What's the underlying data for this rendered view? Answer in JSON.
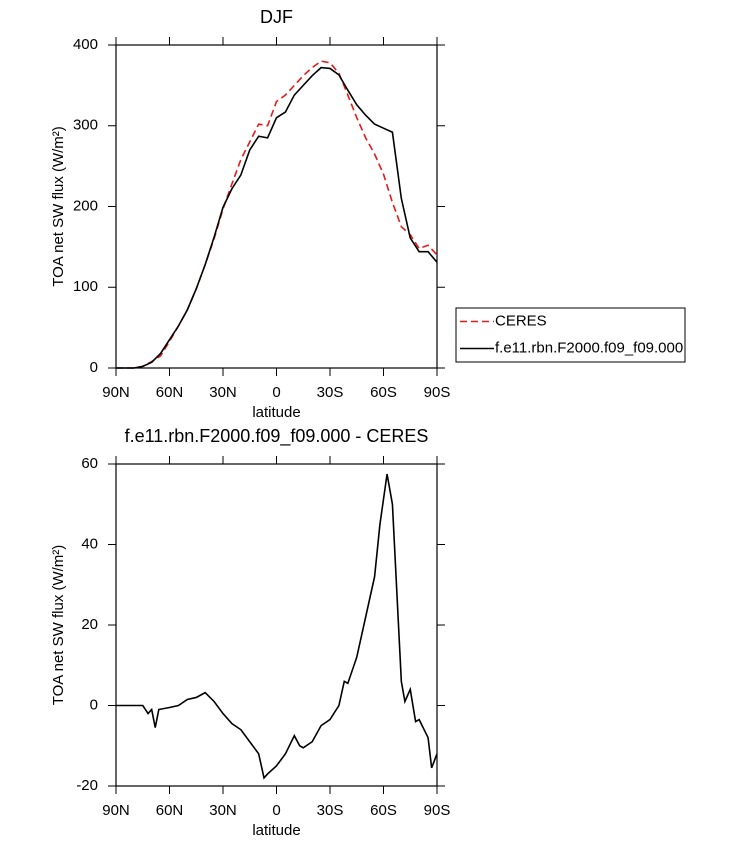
{
  "chart_data": [
    {
      "type": "line",
      "title": "DJF",
      "xlabel": "latitude",
      "ylabel": "TOA net SW flux (W/m²)",
      "x": [
        90,
        85,
        80,
        75,
        70,
        65,
        60,
        55,
        50,
        45,
        40,
        35,
        30,
        25,
        20,
        15,
        10,
        5,
        0,
        -5,
        -10,
        -15,
        -20,
        -25,
        -30,
        -35,
        -40,
        -45,
        -50,
        -55,
        -60,
        -65,
        -70,
        -75,
        -80,
        -85,
        -90
      ],
      "series": [
        {
          "name": "CERES",
          "color": "#e41a1c",
          "line_style": "dashed",
          "values": [
            0,
            0,
            0,
            2,
            8,
            15,
            33,
            52,
            72,
            98,
            128,
            160,
            197,
            228,
            258,
            280,
            302,
            300,
            330,
            338,
            350,
            362,
            372,
            380,
            378,
            365,
            338,
            310,
            285,
            265,
            240,
            205,
            175,
            165,
            148,
            152,
            140
          ]
        },
        {
          "name": "f.e11.rbn.F2000.f09_f09.000",
          "color": "#000000",
          "line_style": "solid",
          "values": [
            0,
            0,
            0,
            2,
            7,
            18,
            35,
            52,
            72,
            98,
            128,
            162,
            199,
            222,
            239,
            270,
            287,
            285,
            310,
            317,
            338,
            350,
            362,
            372,
            371,
            363,
            344,
            326,
            313,
            302,
            297,
            292,
            210,
            161,
            144,
            144,
            131
          ]
        }
      ],
      "xlim": [
        90,
        -90
      ],
      "xticks": [
        {
          "value": 90,
          "label": "90N"
        },
        {
          "value": 60,
          "label": "60N"
        },
        {
          "value": 30,
          "label": "30N"
        },
        0,
        {
          "value": -30,
          "label": "30S"
        },
        {
          "value": -60,
          "label": "60S"
        },
        {
          "value": -90,
          "label": "90S"
        }
      ],
      "ylim": [
        0,
        400
      ],
      "yticks": [
        0,
        100,
        200,
        300,
        400
      ],
      "legend": "right"
    },
    {
      "type": "line",
      "title": "f.e11.rbn.F2000.f09_f09.000 - CERES",
      "xlabel": "latitude",
      "ylabel": "TOA net SW flux (W/m²)",
      "x": [
        90,
        85,
        80,
        75,
        72,
        70,
        68,
        66,
        60,
        55,
        50,
        45,
        40,
        35,
        30,
        25,
        20,
        15,
        10,
        7,
        5,
        0,
        -5,
        -10,
        -13,
        -15,
        -20,
        -25,
        -30,
        -35,
        -38,
        -40,
        -45,
        -50,
        -55,
        -58,
        -62,
        -65,
        -70,
        -72,
        -75,
        -78,
        -80,
        -85,
        -87,
        -90
      ],
      "values": [
        0,
        0,
        0,
        0,
        -2,
        -1,
        -5.5,
        -1,
        -0.5,
        0,
        1.5,
        2,
        3.2,
        1,
        -2,
        -4.5,
        -6,
        -9,
        -12,
        -18,
        -17,
        -15,
        -12,
        -7.5,
        -10,
        -10.5,
        -9,
        -5,
        -3.5,
        0,
        6,
        5.5,
        12,
        22,
        32,
        45,
        57.5,
        50,
        6,
        1,
        4,
        -4,
        -3.5,
        -8,
        -15.5,
        -12
      ],
      "color": "#000000",
      "xlim": [
        90,
        -90
      ],
      "xticks": [
        {
          "value": 90,
          "label": "90N"
        },
        {
          "value": 60,
          "label": "60N"
        },
        {
          "value": 30,
          "label": "30N"
        },
        0,
        {
          "value": -30,
          "label": "30S"
        },
        {
          "value": -60,
          "label": "60S"
        },
        {
          "value": -90,
          "label": "90S"
        }
      ],
      "ylim": [
        -20,
        60
      ],
      "yticks": [
        -20,
        0,
        20,
        40,
        60
      ]
    }
  ]
}
